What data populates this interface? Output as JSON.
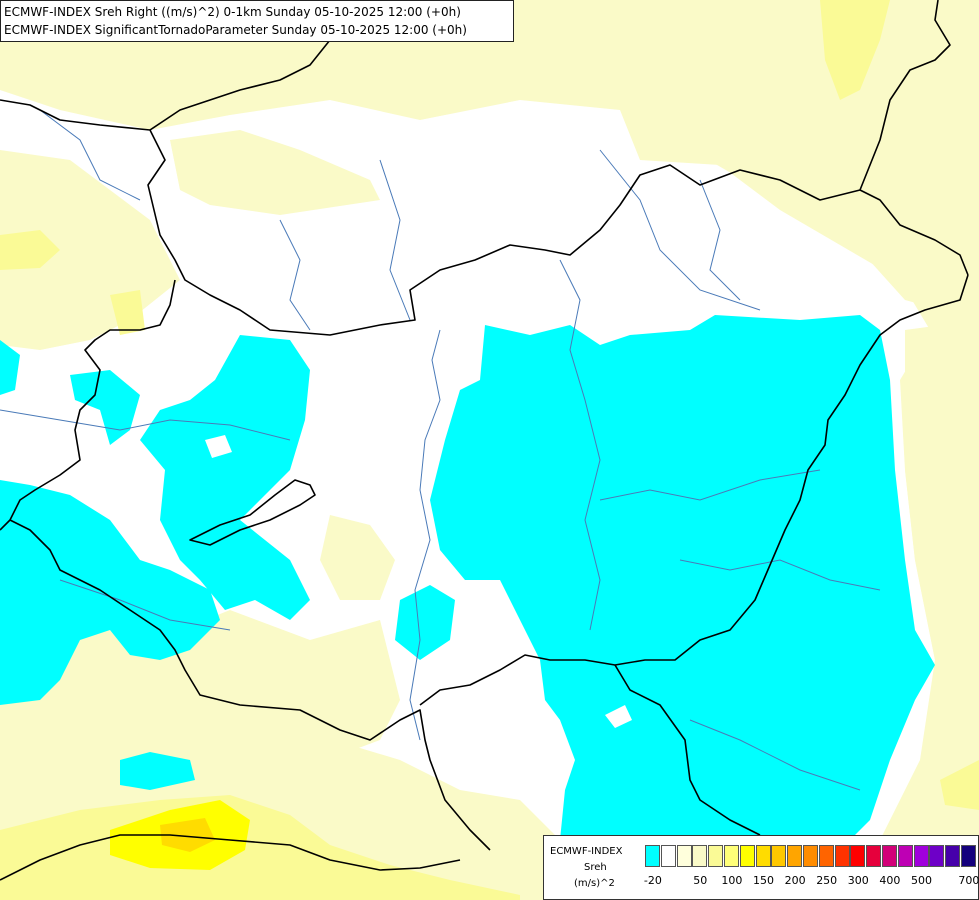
{
  "header": {
    "line1": "ECMWF-INDEX Sreh Right ((m/s)^2) 0-1km Sunday 05-10-2025 12:00 (+0h)",
    "line2": "ECMWF-INDEX SignificantTornadoParameter Sunday 05-10-2025 12:00 (+0h)"
  },
  "legend": {
    "model": "ECMWF-INDEX",
    "parameter": "Sreh",
    "unit": "(m/s)^2",
    "swatches": [
      {
        "value": "-20",
        "color": "#00ffff"
      },
      {
        "value": "0",
        "color": "#ffffff"
      },
      {
        "value": "25",
        "color": "#ffffdc"
      },
      {
        "value": "50",
        "color": "#fafac8"
      },
      {
        "value": "75",
        "color": "#fafa96"
      },
      {
        "value": "100",
        "color": "#ffff78"
      },
      {
        "value": "125",
        "color": "#ffff00"
      },
      {
        "value": "150",
        "color": "#ffdc00"
      },
      {
        "value": "175",
        "color": "#ffc800"
      },
      {
        "value": "200",
        "color": "#ffa500"
      },
      {
        "value": "225",
        "color": "#ff8c00"
      },
      {
        "value": "250",
        "color": "#ff6400"
      },
      {
        "value": "275",
        "color": "#ff3200"
      },
      {
        "value": "300",
        "color": "#ff0000"
      },
      {
        "value": "350",
        "color": "#e6003c"
      },
      {
        "value": "400",
        "color": "#d20078"
      },
      {
        "value": "450",
        "color": "#be00b4"
      },
      {
        "value": "500",
        "color": "#a000dc"
      },
      {
        "value": "600",
        "color": "#6e00c8"
      },
      {
        "value": "650",
        "color": "#4600aa"
      },
      {
        "value": "700",
        "color": "#14007d"
      }
    ],
    "ticks": [
      "-20",
      "50",
      "100",
      "150",
      "200",
      "250",
      "300",
      "400",
      "500",
      "700"
    ]
  },
  "colors": {
    "cyan": "#00ffff",
    "white": "#ffffff",
    "pale_yellow": "#fafac8",
    "light_yellow": "#fafa96",
    "yellow": "#ffff00",
    "border": "#000000",
    "river": "#4a7ab8"
  }
}
